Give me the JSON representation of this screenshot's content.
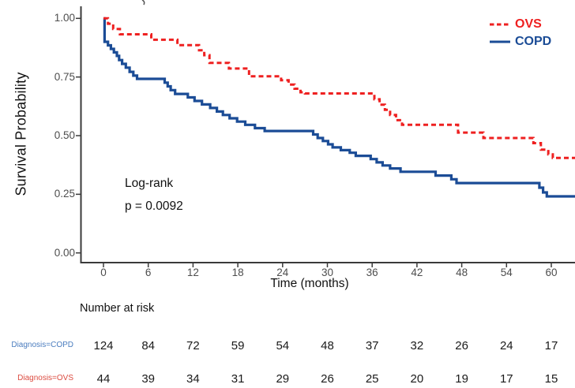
{
  "chart_data": {
    "type": "line",
    "subtype": "kaplan-meier-step-curves",
    "title": "",
    "xlabel": "Time (months)",
    "ylabel": "Survival Probability",
    "xlim": [
      0,
      63.5
    ],
    "ylim": [
      0,
      1
    ],
    "grid": false,
    "legend_position": "top-right",
    "axis_color": "#3a3a3a",
    "tick_label_color": "#4d4d4d",
    "x_ticks": {
      "values": [
        0,
        6,
        12,
        18,
        24,
        30,
        36,
        42,
        48,
        54,
        60
      ],
      "labels": [
        "0",
        "6",
        "12",
        "18",
        "24",
        "30",
        "36",
        "42",
        "48",
        "54",
        "60"
      ]
    },
    "y_ticks": {
      "values": [
        1.0,
        0.75,
        0.5,
        0.25,
        0.0
      ],
      "labels": [
        "1.00",
        "0.75",
        "0.50",
        "0.25",
        "0.00"
      ]
    },
    "annotations": [
      "Log-rank",
      "p = 0.0092"
    ],
    "series": [
      {
        "name": "COPD",
        "color": "#1B4C96",
        "line_style": "solid",
        "steps": [
          [
            0,
            1.0
          ],
          [
            0.15,
            0.9
          ],
          [
            0.6,
            0.885
          ],
          [
            1.0,
            0.87
          ],
          [
            1.4,
            0.855
          ],
          [
            1.8,
            0.84
          ],
          [
            2.1,
            0.822
          ],
          [
            2.5,
            0.806
          ],
          [
            3.0,
            0.79
          ],
          [
            3.5,
            0.772
          ],
          [
            4.0,
            0.756
          ],
          [
            4.5,
            0.742
          ],
          [
            8.2,
            0.726
          ],
          [
            8.6,
            0.71
          ],
          [
            9.0,
            0.694
          ],
          [
            9.6,
            0.678
          ],
          [
            11.3,
            0.663
          ],
          [
            12.2,
            0.648
          ],
          [
            13.2,
            0.633
          ],
          [
            14.3,
            0.618
          ],
          [
            15.2,
            0.603
          ],
          [
            16.0,
            0.588
          ],
          [
            16.9,
            0.574
          ],
          [
            17.9,
            0.56
          ],
          [
            19.0,
            0.546
          ],
          [
            20.3,
            0.532
          ],
          [
            21.6,
            0.52
          ],
          [
            28.1,
            0.505
          ],
          [
            28.7,
            0.49
          ],
          [
            29.4,
            0.477
          ],
          [
            30.1,
            0.463
          ],
          [
            30.7,
            0.45
          ],
          [
            31.8,
            0.438
          ],
          [
            33.0,
            0.427
          ],
          [
            33.8,
            0.414
          ],
          [
            35.8,
            0.4
          ],
          [
            36.6,
            0.386
          ],
          [
            37.4,
            0.373
          ],
          [
            38.4,
            0.36
          ],
          [
            39.8,
            0.346
          ],
          [
            44.5,
            0.33
          ],
          [
            46.6,
            0.314
          ],
          [
            47.3,
            0.298
          ],
          [
            58.4,
            0.278
          ],
          [
            58.9,
            0.258
          ],
          [
            59.4,
            0.241
          ]
        ],
        "end_time": 63.5
      },
      {
        "name": "OVS",
        "color": "#EE2020",
        "line_style": "dashed",
        "steps": [
          [
            0,
            1.0
          ],
          [
            0.6,
            0.977
          ],
          [
            1.3,
            0.955
          ],
          [
            2.2,
            0.932
          ],
          [
            6.4,
            0.909
          ],
          [
            9.9,
            0.886
          ],
          [
            12.8,
            0.864
          ],
          [
            13.5,
            0.843
          ],
          [
            14.2,
            0.81
          ],
          [
            16.8,
            0.786
          ],
          [
            19.5,
            0.753
          ],
          [
            23.8,
            0.736
          ],
          [
            24.8,
            0.718
          ],
          [
            25.6,
            0.7
          ],
          [
            26.4,
            0.685
          ],
          [
            27.0,
            0.68
          ],
          [
            36.3,
            0.655
          ],
          [
            37.0,
            0.632
          ],
          [
            37.7,
            0.61
          ],
          [
            38.4,
            0.588
          ],
          [
            39.2,
            0.566
          ],
          [
            40.0,
            0.546
          ],
          [
            47.5,
            0.513
          ],
          [
            50.9,
            0.49
          ],
          [
            57.6,
            0.468
          ],
          [
            58.6,
            0.44
          ],
          [
            59.6,
            0.42
          ],
          [
            60.2,
            0.405
          ]
        ],
        "end_time": 63.5
      }
    ]
  },
  "legend": {
    "entries": [
      {
        "label": "OVS",
        "color": "#EE2020",
        "style": "dashed"
      },
      {
        "label": "COPD",
        "color": "#1B4C96",
        "style": "solid"
      }
    ]
  },
  "risk_table": {
    "title": "Number at risk",
    "time_points": [
      0,
      6,
      12,
      18,
      24,
      30,
      36,
      42,
      48,
      54,
      60
    ],
    "rows": [
      {
        "label": "Diagnosis=COPD",
        "label_color": "#4A7CBE",
        "counts": [
          124,
          84,
          72,
          59,
          54,
          48,
          37,
          32,
          26,
          24,
          17
        ]
      },
      {
        "label": "Diagnosis=OVS",
        "label_color": "#DC4C41",
        "counts": [
          44,
          39,
          34,
          31,
          29,
          26,
          25,
          20,
          19,
          17,
          15
        ]
      }
    ]
  }
}
